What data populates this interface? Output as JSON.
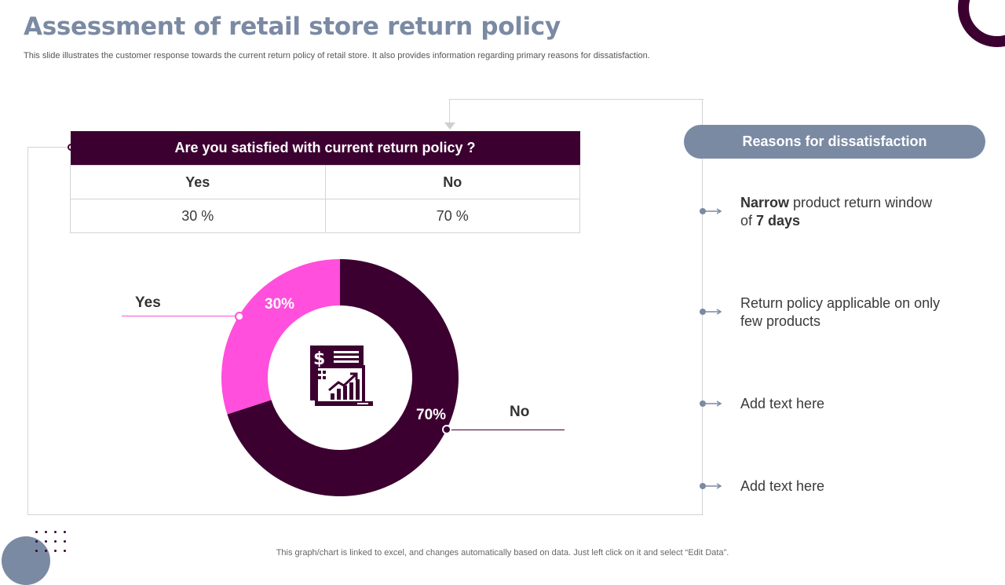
{
  "slide": {
    "title": "Assessment of retail store return policy",
    "subtitle": "This slide illustrates the customer response towards the current return policy of retail store. It also provides information regarding primary reasons for dissatisfaction.",
    "footer": "This graph/chart is linked to excel,  and changes automatically based on data. Just left click on it and select “Edit Data”."
  },
  "survey_table": {
    "question": "Are you satisfied with current return policy ?",
    "headers": [
      "Yes",
      "No"
    ],
    "values": [
      "30 %",
      "70 %"
    ]
  },
  "reasons": {
    "heading": "Reasons for dissatisfaction",
    "items": [
      {
        "bold_lead": "Narrow",
        "text": " product return window of ",
        "bold_tail": "7 days"
      },
      {
        "bold_lead": "",
        "text": "Return policy applicable on only few products",
        "bold_tail": ""
      },
      {
        "bold_lead": "",
        "text": "Add text here",
        "bold_tail": ""
      },
      {
        "bold_lead": "",
        "text": "Add text here",
        "bold_tail": ""
      }
    ]
  },
  "chart_data": {
    "type": "pie",
    "variant": "donut",
    "title": "Are you satisfied with current return policy ?",
    "categories": [
      "Yes",
      "No"
    ],
    "values": [
      30,
      70
    ],
    "data_labels": [
      "30%",
      "70%"
    ],
    "colors": [
      "#ff4fdc",
      "#3c0030"
    ],
    "center_icon": "financial-report-growth-icon"
  },
  "colors": {
    "primary": "#3c0030",
    "accent": "#ff4fdc",
    "slate": "#7b8aa3"
  }
}
